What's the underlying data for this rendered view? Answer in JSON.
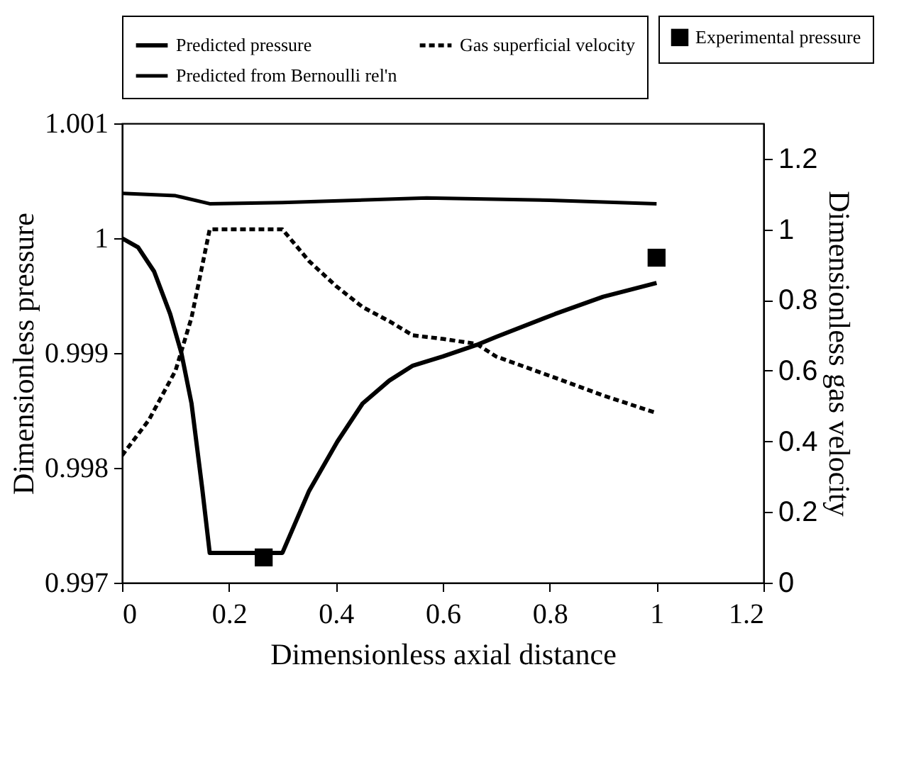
{
  "chart_data": {
    "type": "line",
    "xlabel": "Dimensionless axial distance",
    "ylabel": "Dimensionless pressure",
    "y2label": "Dimensionless gas velocity",
    "xlim": [
      0,
      1.2
    ],
    "xticks": [
      0,
      0.2,
      0.4,
      0.6,
      0.8,
      1,
      1.2
    ],
    "ylim": [
      0.997,
      1.001
    ],
    "yticks": [
      0.997,
      0.998,
      0.999,
      1,
      1.001
    ],
    "y2lim": [
      0,
      1.3
    ],
    "y2ticks": [
      0,
      0.2,
      0.4,
      0.6,
      0.8,
      1,
      1.2
    ],
    "legend": "top",
    "grid": false,
    "series": [
      {
        "name": "Predicted pressure",
        "line_style": "solid",
        "color": "#000000",
        "x": [
          0,
          0.03,
          0.06,
          0.09,
          0.111,
          0.13,
          0.15,
          0.164,
          0.3,
          0.35,
          0.403,
          0.45,
          0.5,
          0.544,
          0.6,
          0.663,
          0.7,
          0.81,
          0.9,
          1
        ],
        "values": [
          1,
          0.99992,
          0.99971,
          0.99934,
          0.999,
          0.99856,
          0.99782,
          0.99726,
          0.99726,
          0.9978,
          0.99823,
          0.99856,
          0.99876,
          0.99889,
          0.99897,
          0.99907,
          0.99914,
          0.99934,
          0.99949,
          0.99961
        ]
      },
      {
        "name": "Gas superficial velocity",
        "line_style": "dashed",
        "axis": "y2",
        "color": "#000000",
        "x": [
          0,
          0.05,
          0.1,
          0.13,
          0.164,
          0.3,
          0.35,
          0.4,
          0.45,
          0.5,
          0.544,
          0.6,
          0.663,
          0.7,
          0.81,
          0.9,
          1
        ],
        "values": [
          0.36,
          0.46,
          0.6,
          0.75,
          1,
          1,
          0.91,
          0.84,
          0.78,
          0.74,
          0.7,
          0.69,
          0.676,
          0.64,
          0.58,
          0.53,
          0.48
        ]
      },
      {
        "name": "Predicted from Bernoulli rel'n",
        "line_style": "solid",
        "color": "#000000",
        "x": [
          0,
          0.1,
          0.164,
          0.3,
          0.57,
          0.8,
          1
        ],
        "values": [
          1.00039,
          1.00037,
          1.0003,
          1.00031,
          1.00035,
          1.00033,
          1.0003
        ]
      },
      {
        "name": "Experimental pressure",
        "type": "scatter",
        "marker": "square",
        "color": "#000000",
        "x": [
          0.265,
          1
        ],
        "values": [
          0.99722,
          0.99983
        ]
      }
    ]
  }
}
